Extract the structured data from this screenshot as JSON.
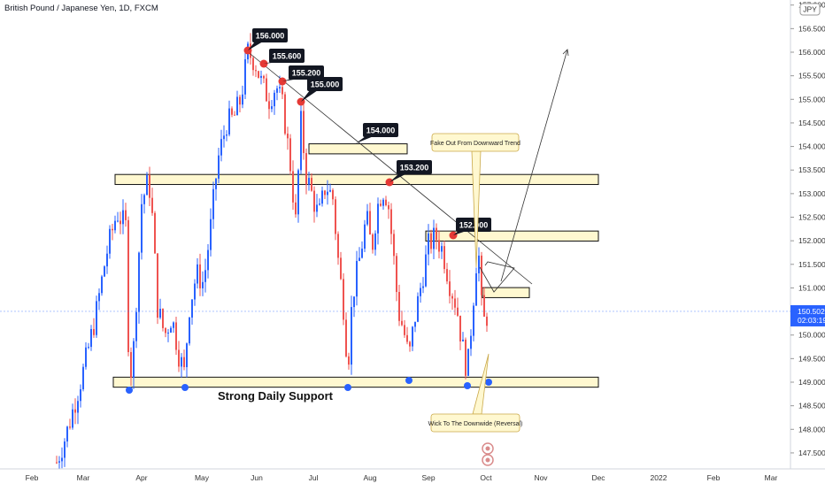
{
  "title": "British Pound / Japanese Yen, 1D, FXCM",
  "currency_badge": "JPY",
  "last_price": "150.502",
  "countdown": "02:03:19",
  "colors": {
    "up": "#2962ff",
    "down": "#ef5350",
    "zone_fill": "#fff8d0",
    "callout_bg": "#131722",
    "marker_red": "#e53935",
    "marker_blue": "#2962ff",
    "price_line": "#2962ff"
  },
  "chart_data": {
    "type": "candlestick",
    "y_ticks": [
      "147.500",
      "148.000",
      "148.500",
      "149.000",
      "149.500",
      "150.000",
      "150.500",
      "151.000",
      "151.500",
      "152.000",
      "152.500",
      "153.000",
      "153.500",
      "154.000",
      "154.500",
      "155.000",
      "155.500",
      "156.000",
      "156.500",
      "157.000"
    ],
    "x_ticks": [
      "Feb",
      "Mar",
      "Apr",
      "May",
      "Jun",
      "Jul",
      "Aug",
      "Sep",
      "Oct",
      "Nov",
      "Dec",
      "2022",
      "Feb",
      "Mar"
    ],
    "zones": [
      {
        "label": "zone-153-3",
        "y_low": 153.25,
        "y_high": 153.35,
        "x_from": "Mar 10",
        "x_to": "Dec"
      },
      {
        "label": "zone-154",
        "y_low": 153.9,
        "y_high": 154.0,
        "x_from": "Jul 01",
        "x_to": "Aug"
      },
      {
        "label": "zone-152",
        "y_low": 152.05,
        "y_high": 152.15,
        "x_from": "Aug 30",
        "x_to": "Dec"
      },
      {
        "label": "zone-150-9",
        "y_low": 150.85,
        "y_high": 150.95,
        "x_from": "Oct",
        "x_to": "Oct 25"
      },
      {
        "label": "zone-149",
        "y_low": 148.95,
        "y_high": 149.05,
        "x_from": "Mar 10",
        "x_to": "Dec"
      }
    ],
    "price_callouts": [
      {
        "text": "156.000",
        "price": 156.0
      },
      {
        "text": "155.600",
        "price": 155.75
      },
      {
        "text": "155.200",
        "price": 155.5
      },
      {
        "text": "155.000",
        "price": 155.0
      },
      {
        "text": "154.000",
        "price": 154.0
      },
      {
        "text": "153.200",
        "price": 153.2
      },
      {
        "text": "152.000",
        "price": 152.0
      }
    ],
    "annotations": [
      {
        "text": "Fake Out From Downward Trend"
      },
      {
        "text": "Strong Daily Support"
      },
      {
        "text": "Wick To The Downwide (Reversal)"
      }
    ]
  }
}
